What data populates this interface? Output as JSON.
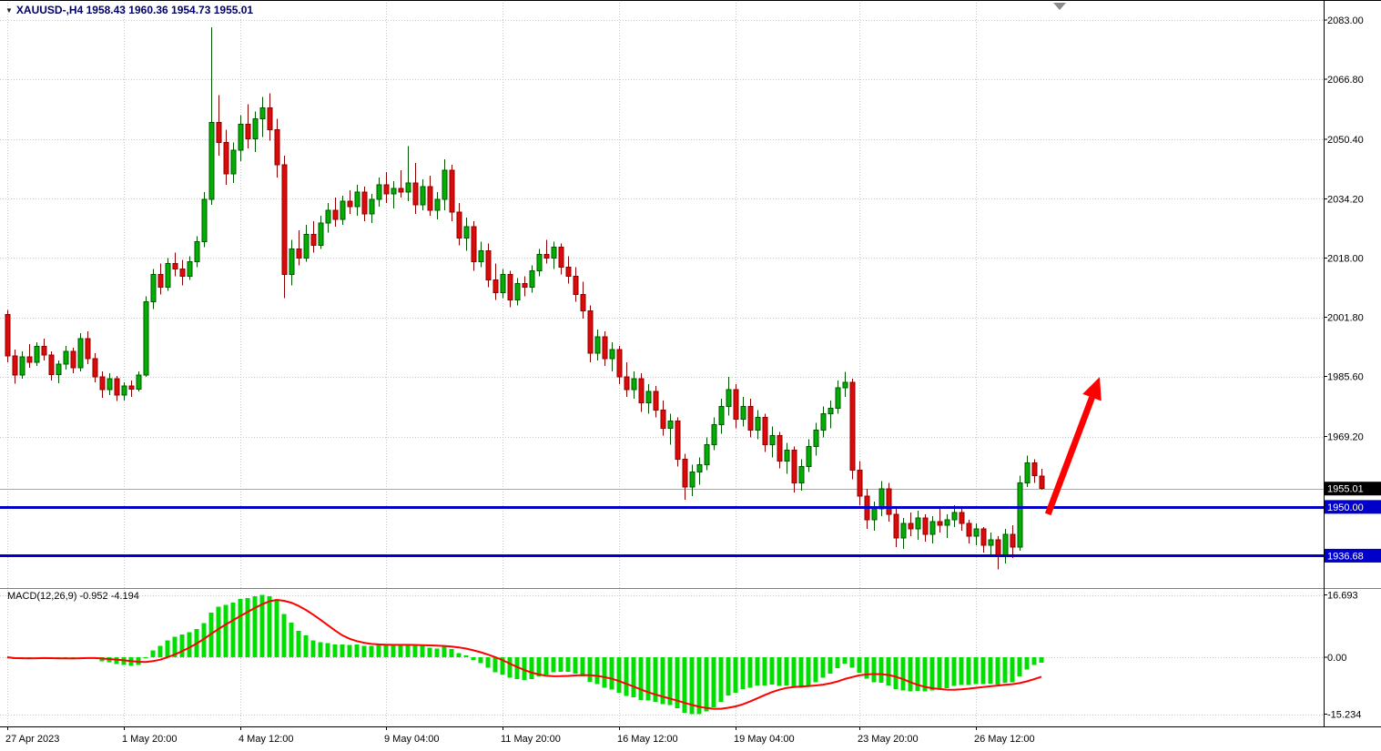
{
  "header": {
    "dropdown_icon": "▼",
    "title": "XAUUSD-,H4 1958.43 1960.36 1954.73 1955.01"
  },
  "colors": {
    "background": "#FFFFFF",
    "grid": "#C9C9C9",
    "frame": "#000000",
    "separator": "#808080",
    "bull_fill": "#00B000",
    "bull_border": "#005500",
    "bear_fill": "#DC0A0A",
    "bear_border": "#8B0000",
    "macd_bar": "#00DD00",
    "macd_signal": "#FF0000",
    "hline": "#0000C8",
    "current_price_line": "#A8A8A8",
    "current_badge_bg": "#000000",
    "badge_text": "#FFFFFF",
    "axis_text": "#000000",
    "arrow": "#FF0000",
    "shift_marker": "#8C8C8C"
  },
  "chart_data": {
    "type": "candlestick",
    "symbol": "XAUUSD-",
    "timeframe": "H4",
    "ohlc_display": {
      "open": "1958.43",
      "high": "1960.36",
      "low": "1954.73",
      "close": "1955.01"
    },
    "price_axis": {
      "ticks": [
        2083.0,
        2066.8,
        2050.4,
        2034.2,
        2018.0,
        2001.8,
        1985.6,
        1969.2
      ],
      "ylim": [
        1929.0,
        2086.5
      ]
    },
    "x_axis": {
      "labels": [
        {
          "text": "27 Apr 2023",
          "index": 0
        },
        {
          "text": "1 May 20:00",
          "index": 16
        },
        {
          "text": "4 May 12:00",
          "index": 32
        },
        {
          "text": "9 May 04:00",
          "index": 52
        },
        {
          "text": "11 May 20:00",
          "index": 68
        },
        {
          "text": "16 May 12:00",
          "index": 84
        },
        {
          "text": "19 May 04:00",
          "index": 100
        },
        {
          "text": "23 May 20:00",
          "index": 117
        },
        {
          "text": "26 May 12:00",
          "index": 133
        }
      ]
    },
    "current_price": {
      "value": 1955.01,
      "label": "1955.01"
    },
    "hlines": [
      {
        "value": 1950.0,
        "label": "1950.00"
      },
      {
        "value": 1936.68,
        "label": "1936.68"
      }
    ],
    "arrow": {
      "from": {
        "index": 142.9,
        "price": 1948.0
      },
      "to": {
        "index": 150.0,
        "price": 1985.5
      }
    },
    "shift_marker_index": 144.5,
    "macd": {
      "label": "MACD(12,26,9) -0.952 -4.194",
      "params": "12,26,9",
      "macd_value": -0.952,
      "signal_value": -4.194,
      "axis_ticks": [
        {
          "value": 16.693,
          "label": "16.693"
        },
        {
          "value": 0,
          "label": "0.00"
        },
        {
          "value": -15.234,
          "label": "-15.234"
        }
      ]
    },
    "candles": [
      [
        2002.5,
        2003.8,
        1989.5,
        1991.2
      ],
      [
        1991.2,
        1993,
        1983.6,
        1986
      ],
      [
        1986,
        1992.5,
        1985,
        1991
      ],
      [
        1991,
        1994.5,
        1988,
        1989.5
      ],
      [
        1989.5,
        1995,
        1988.5,
        1993.8
      ],
      [
        1993.8,
        1996,
        1990,
        1991.5
      ],
      [
        1991.5,
        1992.5,
        1984.5,
        1986.2
      ],
      [
        1986.2,
        1990,
        1983.8,
        1989
      ],
      [
        1989,
        1994,
        1987.5,
        1992.5
      ],
      [
        1992.5,
        1993.5,
        1986.5,
        1988
      ],
      [
        1988,
        1997.5,
        1987,
        1996
      ],
      [
        1996,
        1998,
        1989,
        1990.5
      ],
      [
        1990.5,
        1992,
        1984,
        1985.5
      ],
      [
        1985.5,
        1987,
        1979.8,
        1982
      ],
      [
        1982,
        1986.5,
        1980.5,
        1985
      ],
      [
        1985,
        1985.8,
        1978.9,
        1980.5
      ],
      [
        1980.5,
        1984,
        1979,
        1983
      ],
      [
        1983,
        1984.5,
        1980,
        1982.2
      ],
      [
        1982.2,
        1987,
        1981.5,
        1986
      ],
      [
        1986,
        2007.5,
        1985.5,
        2006
      ],
      [
        2006,
        2015,
        2004,
        2013.5
      ],
      [
        2013.5,
        2016.5,
        2008,
        2010
      ],
      [
        2010,
        2018,
        2009,
        2016.5
      ],
      [
        2016.5,
        2019.5,
        2013,
        2015
      ],
      [
        2015,
        2017.5,
        2010.5,
        2013
      ],
      [
        2013,
        2018.5,
        2012,
        2017
      ],
      [
        2017,
        2024,
        2015.5,
        2022.5
      ],
      [
        2022.5,
        2036,
        2021,
        2034
      ],
      [
        2034,
        2081,
        2032.5,
        2055
      ],
      [
        2055,
        2062.5,
        2046,
        2049.5
      ],
      [
        2049.5,
        2053,
        2038,
        2041
      ],
      [
        2041,
        2049.5,
        2038.5,
        2047.5
      ],
      [
        2047.5,
        2057,
        2044.5,
        2054.5
      ],
      [
        2054.5,
        2060,
        2048,
        2050.5
      ],
      [
        2050.5,
        2058,
        2047,
        2056
      ],
      [
        2056,
        2062,
        2051,
        2059
      ],
      [
        2059,
        2063,
        2050,
        2053
      ],
      [
        2053,
        2056,
        2040,
        2043.5
      ],
      [
        2043.5,
        2046,
        2007,
        2013.5
      ],
      [
        2013.5,
        2023,
        2010.5,
        2020.5
      ],
      [
        2020.5,
        2025.5,
        2016,
        2018
      ],
      [
        2018,
        2027,
        2017,
        2024.5
      ],
      [
        2024.5,
        2028,
        2019.5,
        2021.5
      ],
      [
        2021.5,
        2029.5,
        2020.5,
        2027.5
      ],
      [
        2027.5,
        2033,
        2025,
        2031
      ],
      [
        2031,
        2034.5,
        2026.5,
        2028.5
      ],
      [
        2028.5,
        2035,
        2027,
        2033.5
      ],
      [
        2033.5,
        2036.5,
        2030,
        2032
      ],
      [
        2032,
        2038,
        2029.5,
        2036
      ],
      [
        2036,
        2037.5,
        2028,
        2030
      ],
      [
        2030,
        2035.5,
        2027.5,
        2034
      ],
      [
        2034,
        2040,
        2032,
        2038
      ],
      [
        2038,
        2041.5,
        2033,
        2035.5
      ],
      [
        2035.5,
        2039,
        2031.5,
        2037
      ],
      [
        2037,
        2042,
        2034.5,
        2036
      ],
      [
        2036,
        2048.5,
        2033.5,
        2038.5
      ],
      [
        2038.5,
        2044,
        2030,
        2032.5
      ],
      [
        2032.5,
        2039.5,
        2031,
        2037.5
      ],
      [
        2037.5,
        2040.5,
        2029.5,
        2031
      ],
      [
        2031,
        2036,
        2028.5,
        2034
      ],
      [
        2034,
        2045,
        2031,
        2042
      ],
      [
        2042,
        2043.5,
        2028,
        2030.5
      ],
      [
        2030.5,
        2033,
        2021.5,
        2023.5
      ],
      [
        2023.5,
        2029,
        2020,
        2026.5
      ],
      [
        2026.5,
        2028,
        2014.5,
        2017
      ],
      [
        2017,
        2022.5,
        2015.5,
        2020
      ],
      [
        2020,
        2022,
        2010,
        2012
      ],
      [
        2012,
        2016.5,
        2006.5,
        2008.5
      ],
      [
        2008.5,
        2015,
        2007,
        2013.5
      ],
      [
        2013.5,
        2014.5,
        2004.5,
        2006.5
      ],
      [
        2006.5,
        2012.5,
        2005,
        2011
      ],
      [
        2011,
        2013,
        2007.5,
        2010
      ],
      [
        2010,
        2016,
        2008.5,
        2014.5
      ],
      [
        2014.5,
        2020.5,
        2013,
        2019
      ],
      [
        2019,
        2023,
        2016.5,
        2018
      ],
      [
        2018,
        2022.5,
        2015,
        2021
      ],
      [
        2021,
        2022,
        2013.5,
        2015.5
      ],
      [
        2015.5,
        2018.5,
        2011,
        2013
      ],
      [
        2013,
        2015.5,
        2006,
        2008
      ],
      [
        2008,
        2011.5,
        2001.5,
        2003.5
      ],
      [
        2003.5,
        2005,
        1989.5,
        1992
      ],
      [
        1992,
        1998.5,
        1990,
        1996.5
      ],
      [
        1996.5,
        1998,
        1988.5,
        1990.5
      ],
      [
        1990.5,
        1995,
        1987,
        1993
      ],
      [
        1993,
        1994,
        1983.5,
        1985.5
      ],
      [
        1985.5,
        1989.5,
        1980,
        1982
      ],
      [
        1982,
        1987,
        1979.5,
        1985
      ],
      [
        1985,
        1986.5,
        1976,
        1978.5
      ],
      [
        1978.5,
        1983.5,
        1975.5,
        1981.5
      ],
      [
        1981.5,
        1983,
        1974.5,
        1976.5
      ],
      [
        1976.5,
        1979,
        1969.5,
        1971.5
      ],
      [
        1971.5,
        1975.5,
        1967,
        1973.5
      ],
      [
        1973.5,
        1974.5,
        1961,
        1963
      ],
      [
        1963,
        1964.5,
        1951.9,
        1955.5
      ],
      [
        1955.5,
        1961.5,
        1953,
        1959.5
      ],
      [
        1959.5,
        1963.5,
        1956,
        1961.5
      ],
      [
        1961.5,
        1969,
        1960,
        1967
      ],
      [
        1967,
        1974.5,
        1965.5,
        1972.5
      ],
      [
        1972.5,
        1979.5,
        1970,
        1977.5
      ],
      [
        1977.5,
        1985.5,
        1975,
        1982
      ],
      [
        1982,
        1983.5,
        1971.5,
        1974
      ],
      [
        1974,
        1980,
        1972,
        1977.5
      ],
      [
        1977.5,
        1979.5,
        1969,
        1971
      ],
      [
        1971,
        1976.5,
        1968.5,
        1974.5
      ],
      [
        1974.5,
        1975.5,
        1965,
        1967
      ],
      [
        1967,
        1972,
        1963.5,
        1969.5
      ],
      [
        1969.5,
        1970.5,
        1960.5,
        1962.5
      ],
      [
        1962.5,
        1967.5,
        1959,
        1965.5
      ],
      [
        1965.5,
        1966.5,
        1953.9,
        1956.5
      ],
      [
        1956.5,
        1963,
        1954.5,
        1961
      ],
      [
        1961,
        1968.5,
        1959.5,
        1966.5
      ],
      [
        1966.5,
        1973,
        1964,
        1971
      ],
      [
        1971,
        1977.5,
        1969,
        1975.5
      ],
      [
        1975.5,
        1979,
        1971.5,
        1977
      ],
      [
        1977,
        1984.5,
        1975.5,
        1982.5
      ],
      [
        1982.5,
        1986.9,
        1980,
        1984
      ],
      [
        1984,
        1985,
        1957.5,
        1960
      ],
      [
        1960,
        1962.5,
        1950.5,
        1953
      ],
      [
        1953,
        1955,
        1944,
        1946.5
      ],
      [
        1946.5,
        1951.5,
        1943.5,
        1949.5
      ],
      [
        1949.5,
        1957,
        1947.5,
        1955
      ],
      [
        1955,
        1956.5,
        1946,
        1948
      ],
      [
        1948,
        1950,
        1939,
        1941.5
      ],
      [
        1941.5,
        1947,
        1938.5,
        1945.5
      ],
      [
        1945.5,
        1948.5,
        1942,
        1944
      ],
      [
        1944,
        1949,
        1941,
        1947
      ],
      [
        1947,
        1948,
        1940.5,
        1942.5
      ],
      [
        1942.5,
        1947.5,
        1940,
        1946
      ],
      [
        1946,
        1949.5,
        1943,
        1945
      ],
      [
        1945,
        1948,
        1941.5,
        1946.5
      ],
      [
        1946.5,
        1950.5,
        1944.5,
        1948.5
      ],
      [
        1948.5,
        1949.5,
        1943.5,
        1945.5
      ],
      [
        1945.5,
        1946.5,
        1940,
        1942
      ],
      [
        1942,
        1945.5,
        1939.5,
        1944
      ],
      [
        1944,
        1944.5,
        1937.5,
        1939.5
      ],
      [
        1939.5,
        1943,
        1936.7,
        1941
      ],
      [
        1941,
        1942,
        1932.9,
        1936.5
      ],
      [
        1936.5,
        1944,
        1934.5,
        1942.5
      ],
      [
        1942.5,
        1945,
        1936,
        1939
      ],
      [
        1939,
        1958.5,
        1938,
        1956.5
      ],
      [
        1956.5,
        1964,
        1955.5,
        1962
      ],
      [
        1962,
        1963,
        1956.5,
        1958.5
      ],
      [
        1958.43,
        1960.36,
        1954.73,
        1955.01
      ]
    ]
  }
}
